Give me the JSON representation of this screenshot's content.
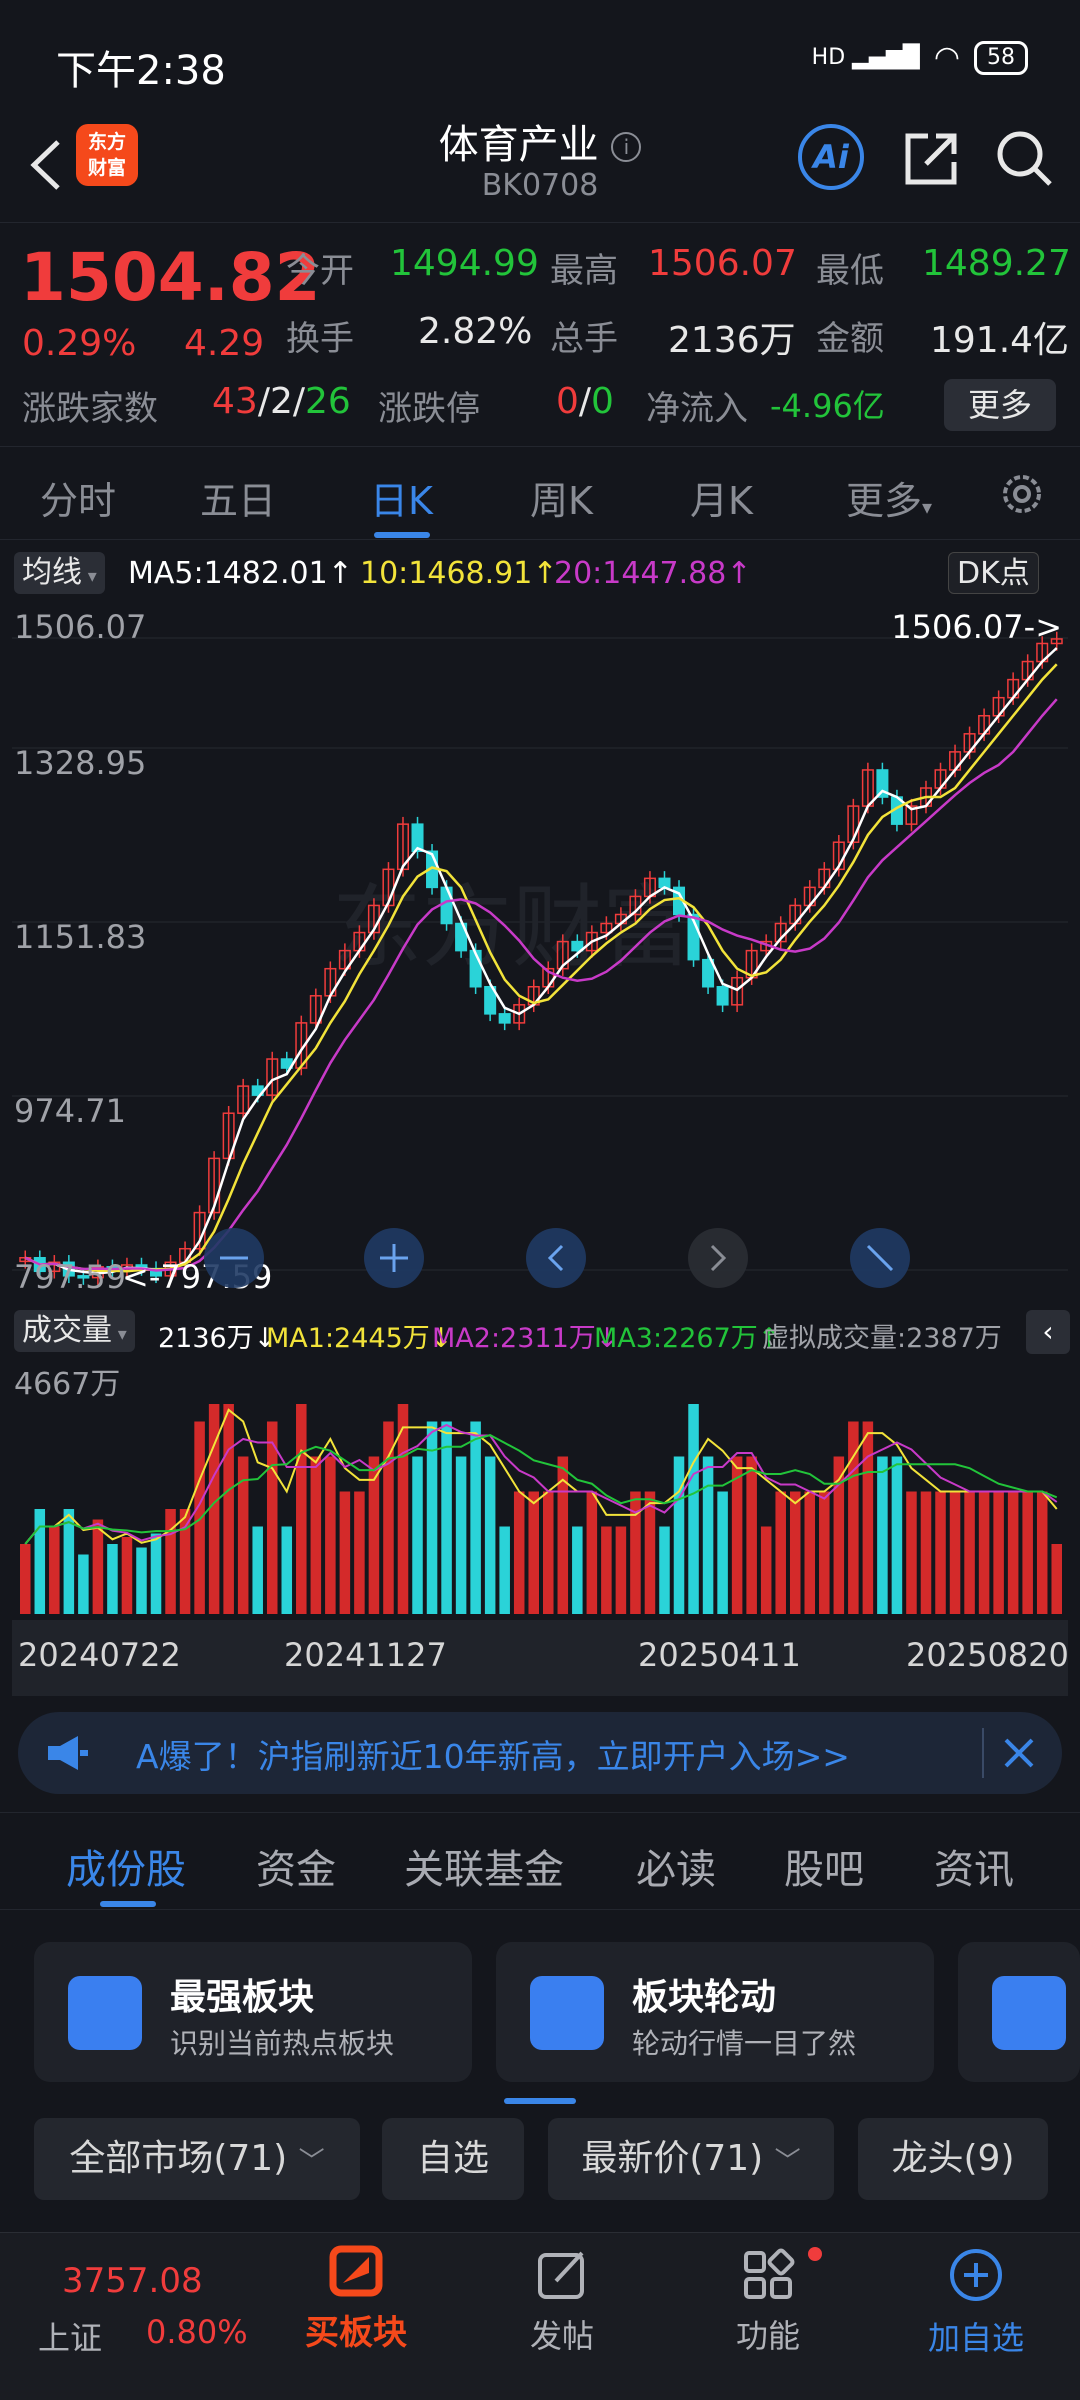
{
  "status": {
    "time": "下午2:38",
    "battery": "58",
    "net": "HD"
  },
  "header": {
    "title": "体育产业",
    "code": "BK0708",
    "logo": "东方\n财富",
    "ai_label": "Ai"
  },
  "quote": {
    "price": "1504.82",
    "pct": "0.29%",
    "change": "4.29",
    "open_label": "今开",
    "open": "1494.99",
    "high_label": "最高",
    "high": "1506.07",
    "low_label": "最低",
    "low": "1489.27",
    "turnover_label": "换手",
    "turnover": "2.82%",
    "volume_label": "总手",
    "volume": "2136万",
    "amount_label": "金额",
    "amount": "191.4亿",
    "breadth_label": "涨跌家数",
    "up": "43",
    "flat": "2",
    "down": "26",
    "limit_label": "涨跌停",
    "limit_up": "0",
    "limit_down": "0",
    "inflow_label": "净流入",
    "inflow": "-4.96亿",
    "more": "更多"
  },
  "period_tabs": [
    "分时",
    "五日",
    "日K",
    "周K",
    "月K",
    "更多"
  ],
  "ma": {
    "selector": "均线",
    "ma5": "MA5:1482.01↑",
    "ma10": "10:1468.91↑",
    "ma20": "20:1447.88↑",
    "dk": "DK点"
  },
  "kline_axis": {
    "y1": "1506.07",
    "y2": "1328.95",
    "y3": "1151.83",
    "y4": "974.71",
    "y5": "797.59",
    "high_tag": "1506.07->",
    "low_tag": "<-797.59"
  },
  "vol": {
    "selector": "成交量",
    "cur": "2136万↓",
    "ma1": "MA1:2445万↓",
    "ma2": "MA2:2311万↓",
    "ma3": "MA3:2267万↑",
    "virtual": "虚拟成交量:2387万",
    "max": "4667万"
  },
  "dates": [
    "20240722",
    "20241127",
    "20250411",
    "20250820"
  ],
  "ad": {
    "text": "A爆了！沪指刷新近10年新高，立即开户入场>>"
  },
  "section_tabs": [
    "成份股",
    "资金",
    "关联基金",
    "必读",
    "股吧",
    "资讯"
  ],
  "cards": [
    {
      "title": "最强板块",
      "sub": "识别当前热点板块"
    },
    {
      "title": "板块轮动",
      "sub": "轮动行情一目了然"
    }
  ],
  "filters": [
    "全部市场(71)",
    "自选",
    "最新价(71)",
    "龙头(9)"
  ],
  "nav": {
    "index_value": "3757.08",
    "index_name": "上证",
    "index_pct": "0.80%",
    "buy": "买板块",
    "post": "发帖",
    "func": "功能",
    "add": "加自选"
  },
  "colors": {
    "up": "#f03c3c",
    "down": "#22c43a",
    "accent": "#3a86e8",
    "ma5": "#ffffff",
    "ma10": "#f2e33a",
    "ma20": "#c83ac8"
  },
  "chart_data": {
    "type": "candlestick",
    "ylim": [
      797.59,
      1506.07
    ],
    "x_range": [
      "20240722",
      "20250820"
    ],
    "close": [
      820,
      805,
      815,
      800,
      798,
      810,
      805,
      812,
      808,
      800,
      815,
      830,
      870,
      930,
      980,
      1010,
      1000,
      1040,
      1030,
      1080,
      1110,
      1140,
      1160,
      1180,
      1210,
      1250,
      1300,
      1270,
      1230,
      1190,
      1160,
      1120,
      1090,
      1080,
      1100,
      1120,
      1140,
      1170,
      1160,
      1180,
      1190,
      1200,
      1220,
      1240,
      1230,
      1200,
      1150,
      1120,
      1100,
      1130,
      1160,
      1170,
      1190,
      1210,
      1230,
      1250,
      1280,
      1320,
      1360,
      1330,
      1300,
      1320,
      1340,
      1360,
      1380,
      1400,
      1420,
      1440,
      1460,
      1480,
      1500,
      1505
    ]
  }
}
